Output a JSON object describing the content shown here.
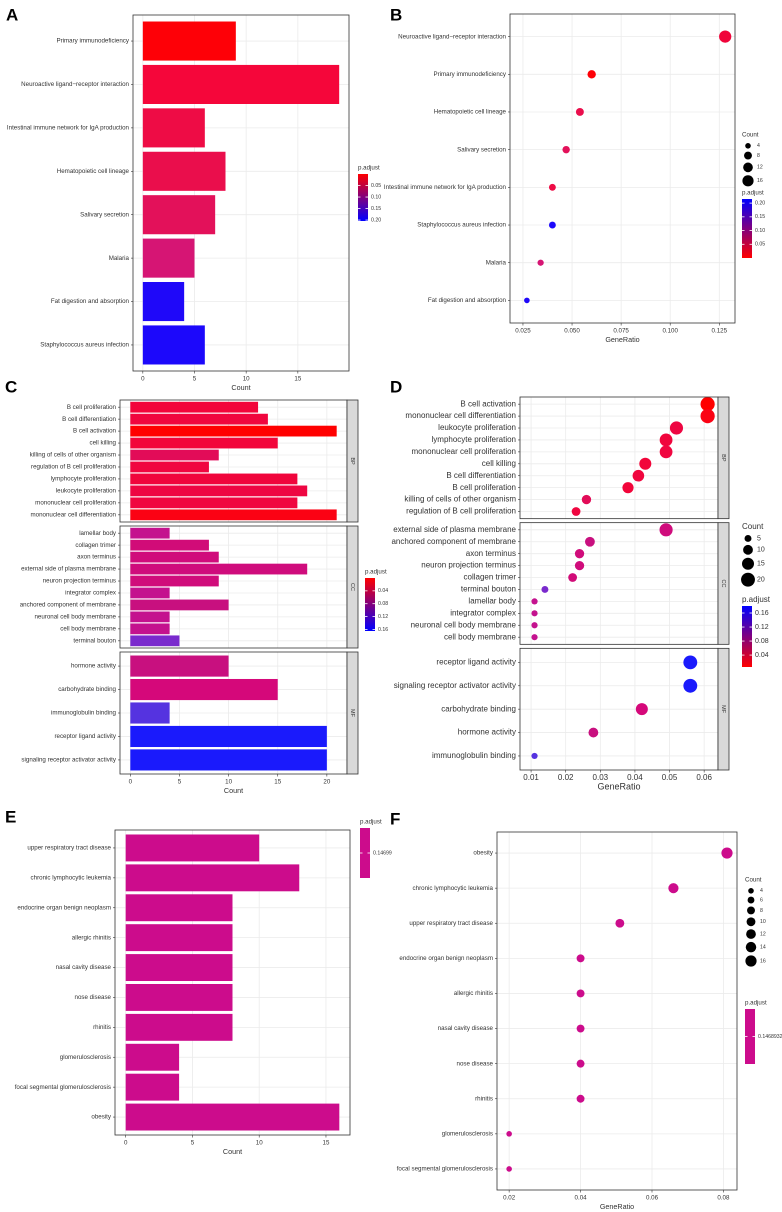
{
  "chart_data": [
    {
      "type": "bar",
      "panel": "A",
      "xlabel": "Count",
      "xlim": [
        -0.95,
        19.95
      ],
      "xticks": [
        0,
        5,
        10,
        15
      ],
      "categories": [
        "Primary immunodeficiency",
        "Neuroactive ligand−receptor interaction",
        "Intestinal immune network for IgA production",
        "Hematopoietic cell lineage",
        "Salivary secretion",
        "Malaria",
        "Fat digestion and absorption",
        "Staphylococcus aureus infection"
      ],
      "values": [
        9,
        19,
        6,
        8,
        7,
        5,
        4,
        6
      ],
      "colors": [
        "#fe0007",
        "#f5063a",
        "#ee0c45",
        "#ea0e4c",
        "#e3115a",
        "#d61574",
        "#1f08f9",
        "#1c08fb"
      ],
      "grid": true,
      "legend": {
        "color_title": "p.adjust",
        "color_ticks": [
          0.05,
          {
            "value": 0.1,
            "label": "0.10"
          },
          0.15,
          {
            "value": 0.2,
            "label": "0.20"
          }
        ],
        "color_lim": [
          0.0,
          0.204
        ],
        "color_ends": [
          "#ff0000",
          "#0000ff"
        ]
      }
    },
    {
      "type": "dot",
      "panel": "B",
      "xlabel": "GeneRatio",
      "xlim": [
        0.0184,
        0.133
      ],
      "xticks": [
        0.025,
        {
          "value": 0.05,
          "label": "0.050"
        },
        0.075,
        {
          "value": 0.1,
          "label": "0.100"
        },
        0.125
      ],
      "categories": [
        "Neuroactive ligand−receptor interaction",
        "Primary immunodeficiency",
        "Hematopoietic cell lineage",
        "Salivary secretion",
        "Intestinal immune network for IgA production",
        "Staphylococcus aureus infection",
        "Malaria",
        "Fat digestion and absorption"
      ],
      "values": [
        0.128,
        0.06,
        0.054,
        0.047,
        0.04,
        0.04,
        0.034,
        0.027
      ],
      "sizes": [
        19,
        9,
        8,
        7,
        6,
        6,
        5,
        4
      ],
      "colors": [
        "#f0043a",
        "#fe0007",
        "#ea0e4c",
        "#e3115a",
        "#ee0c45",
        "#1c08fb",
        "#d61574",
        "#1f08f9"
      ],
      "grid": true,
      "legend": {
        "size_title": "Count",
        "size_ticks": [
          4,
          8,
          12,
          16
        ],
        "color_title": "p.adjust",
        "color_ticks": [
          {
            "value": 0.2,
            "label": "0.20"
          },
          0.15,
          {
            "value": 0.1,
            "label": "0.10"
          },
          0.05
        ],
        "color_lim": [
          0.215,
          0.0
        ],
        "color_ends": [
          "#0000ff",
          "#ff0000"
        ]
      }
    },
    {
      "type": "bar",
      "panel": "C",
      "xlabel": "Count",
      "xlim": [
        -1.05,
        22.05
      ],
      "xticks": [
        0,
        5,
        10,
        15,
        20
      ],
      "grid": true,
      "facets": [
        {
          "name": "BP",
          "categories": [
            "B cell proliferation",
            "B cell differentiation",
            "B cell activation",
            "cell killing",
            "killing of cells of other organism",
            "regulation of B cell proliferation",
            "lymphocyte proliferation",
            "leukocyte proliferation",
            "mononuclear cell proliferation",
            "mononuclear cell differentiation"
          ],
          "values": [
            13,
            14,
            21,
            15,
            9,
            8,
            17,
            18,
            17,
            21
          ],
          "colors": [
            "#f2053a",
            "#f0063e",
            "#ff0000",
            "#f2053a",
            "#e20c58",
            "#f00640",
            "#f0053c",
            "#ee0642",
            "#f00640",
            "#fb0214"
          ]
        },
        {
          "name": "CC",
          "categories": [
            "lamellar body",
            "collagen trimer",
            "axon terminus",
            "external side of plasma membrane",
            "neuron projection terminus",
            "integrator complex",
            "anchored component of membrane",
            "neuronal cell body membrane",
            "cell body membrane",
            "terminal bouton"
          ],
          "values": [
            4,
            8,
            9,
            18,
            9,
            4,
            10,
            4,
            4,
            5
          ],
          "colors": [
            "#c4128e",
            "#d10c78",
            "#d00c7b",
            "#cf0c7c",
            "#d00c7b",
            "#c4128e",
            "#c8107f",
            "#c4128e",
            "#c4128e",
            "#7a2acd"
          ]
        },
        {
          "name": "MF",
          "categories": [
            "hormone activity",
            "carbohydrate binding",
            "immunoglobulin binding",
            "receptor ligand activity",
            "signaling receptor activator activity"
          ],
          "values": [
            10,
            15,
            4,
            20,
            20
          ],
          "colors": [
            "#c8107f",
            "#d5087a",
            "#5533e0",
            "#1a1afc",
            "#1a1afc"
          ]
        }
      ],
      "legend": {
        "color_title": "p.adjust",
        "color_ticks": [
          0.04,
          0.08,
          0.12,
          0.16
        ],
        "color_lim": [
          0.0,
          0.165
        ],
        "color_ends": [
          "#ff0000",
          "#0000ff"
        ]
      }
    },
    {
      "type": "dot",
      "panel": "D",
      "xlabel": "GeneRatio",
      "xlim": [
        0.0068,
        0.064
      ],
      "xticks": [
        0.01,
        0.02,
        0.03,
        0.04,
        0.05,
        0.06
      ],
      "grid": true,
      "facets": [
        {
          "name": "BP",
          "categories": [
            "B cell activation",
            "mononuclear cell differentiation",
            "leukocyte proliferation",
            "lymphocyte proliferation",
            "mononuclear cell proliferation",
            "cell killing",
            "B cell differentiation",
            "B cell proliferation",
            "killing of cells of other organism",
            "regulation of B cell proliferation"
          ],
          "values": [
            0.061,
            0.061,
            0.052,
            0.049,
            0.049,
            0.043,
            0.041,
            0.038,
            0.026,
            0.023
          ],
          "sizes": [
            21,
            21,
            18,
            17,
            17,
            15,
            14,
            13,
            9,
            8
          ],
          "colors": [
            "#ff0000",
            "#fb0214",
            "#ee0642",
            "#f0053c",
            "#f00640",
            "#f2053a",
            "#f0063e",
            "#f2053a",
            "#e20c58",
            "#f00640"
          ]
        },
        {
          "name": "CC",
          "categories": [
            "external side of plasma membrane",
            "anchored component of membrane",
            "axon terminus",
            "neuron projection terminus",
            "collagen trimer",
            "terminal bouton",
            "lamellar body",
            "integrator complex",
            "neuronal cell body membrane",
            "cell body membrane"
          ],
          "values": [
            0.049,
            0.027,
            0.024,
            0.024,
            0.022,
            0.014,
            0.011,
            0.011,
            0.011,
            0.011
          ],
          "sizes": [
            18,
            10,
            9,
            9,
            8,
            5,
            4,
            4,
            4,
            4
          ],
          "colors": [
            "#cf0c7c",
            "#c8107f",
            "#d00c7b",
            "#d00c7b",
            "#d10c78",
            "#7a2acd",
            "#c4128e",
            "#c4128e",
            "#c4128e",
            "#c4128e"
          ]
        },
        {
          "name": "MF",
          "categories": [
            "receptor ligand activity",
            "signaling receptor activator activity",
            "carbohydrate binding",
            "hormone activity",
            "immunoglobulin binding"
          ],
          "values": [
            0.056,
            0.056,
            0.042,
            0.028,
            0.011
          ],
          "sizes": [
            20,
            20,
            15,
            10,
            4
          ],
          "colors": [
            "#1a1afc",
            "#1a1afc",
            "#d5087a",
            "#c8107f",
            "#5533e0"
          ]
        }
      ],
      "legend": {
        "size_title": "Count",
        "size_ticks": [
          5,
          10,
          15,
          20
        ],
        "color_title": "p.adjust",
        "color_ticks": [
          0.16,
          0.12,
          0.08,
          0.04
        ],
        "color_lim": [
          0.18,
          0.006
        ],
        "color_ends": [
          "#0000ff",
          "#ff0000"
        ]
      }
    },
    {
      "type": "bar",
      "panel": "E",
      "xlabel": "Count",
      "xlim": [
        -0.8,
        16.8
      ],
      "xticks": [
        0,
        5,
        10,
        15
      ],
      "grid": true,
      "categories": [
        "upper respiratory tract disease",
        "chronic lymphocytic leukemia",
        "endocrine organ benign neoplasm",
        "allergic rhinitis",
        "nasal cavity disease",
        "nose disease",
        "rhinitis",
        "glomerulosclerosis",
        "focal segmental glomerulosclerosis",
        "obesity"
      ],
      "values": [
        10,
        13,
        8,
        8,
        8,
        8,
        8,
        4,
        4,
        16
      ],
      "color": "#cc0c8c",
      "legend": {
        "color_title": "p.adjust",
        "color_ticks": [
          0.14699
        ],
        "color_ends": [
          "#cc0c8c",
          "#cc0c8c"
        ]
      }
    },
    {
      "type": "dot",
      "panel": "F",
      "xlabel": "GeneRatio",
      "xlim": [
        0.0166,
        0.0838
      ],
      "xticks": [
        0.02,
        0.04,
        0.06,
        0.08
      ],
      "grid": true,
      "categories": [
        "obesity",
        "chronic lymphocytic leukemia",
        "upper respiratory tract disease",
        "endocrine organ benign neoplasm",
        "allergic rhinitis",
        "nasal cavity disease",
        "nose disease",
        "rhinitis",
        "glomerulosclerosis",
        "focal segmental glomerulosclerosis"
      ],
      "values": [
        0.081,
        0.066,
        0.051,
        0.04,
        0.04,
        0.04,
        0.04,
        0.04,
        0.02,
        0.02
      ],
      "sizes": [
        16,
        13,
        10,
        8,
        8,
        8,
        8,
        8,
        4,
        4
      ],
      "color": "#cc0c8c",
      "legend": {
        "size_title": "Count",
        "size_ticks": [
          4,
          6,
          8,
          10,
          12,
          14,
          16
        ],
        "color_title": "p.adjust",
        "color_ticks": [
          0.1468932
        ],
        "color_ends": [
          "#cc0c8c",
          "#cc0c8c"
        ]
      }
    }
  ]
}
